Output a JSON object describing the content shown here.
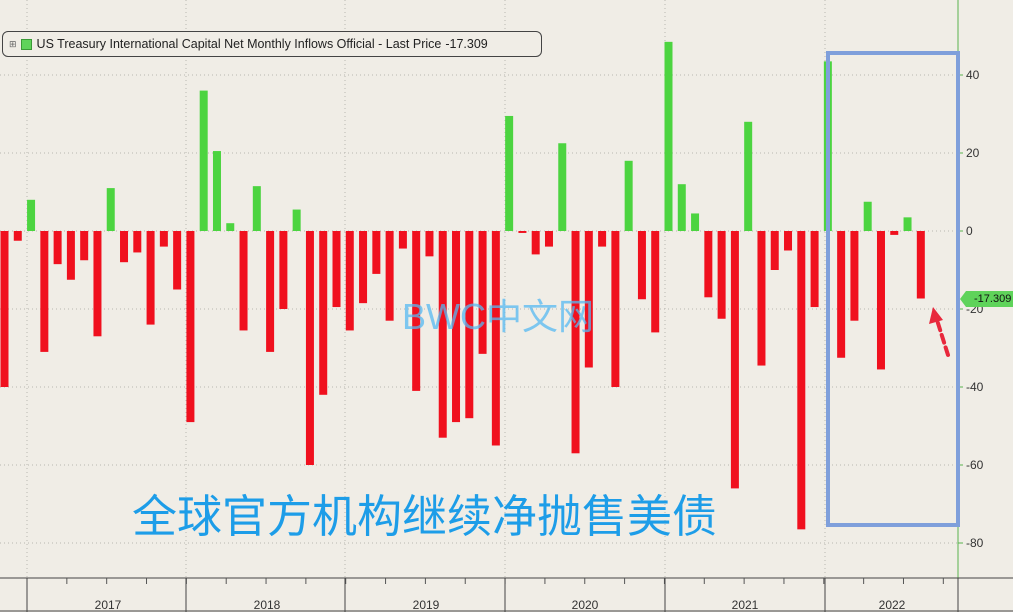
{
  "legend": {
    "label": "US Treasury International Capital Net Monthly Inflows Official - Last Price",
    "last_price": "-17.309"
  },
  "watermark": "BWC中文网",
  "headline": "全球官方机构继续净抛售美债",
  "last_badge": "-17.309",
  "colors": {
    "positive": "#4cd440",
    "negative": "#f0101e",
    "highlight_box": "#7f9fdb",
    "arrow": "#e8283c",
    "background": "#f0ede6"
  },
  "chart_data": {
    "type": "bar",
    "series": [
      {
        "name": "US Treasury International Capital Net Monthly Inflows Official",
        "values": [
          -40,
          -2.5,
          8,
          -31,
          -8.5,
          -12.5,
          -7.5,
          -27,
          11,
          -8,
          -5.5,
          -24,
          -4,
          -15,
          -49,
          36,
          20.5,
          2,
          -25.5,
          11.5,
          -31,
          -20,
          5.5,
          -60,
          -42,
          -19.5,
          -25.5,
          -18.5,
          -11,
          -23,
          -4.5,
          -41,
          -6.5,
          -53,
          -49,
          -48,
          -31.5,
          -55,
          29.5,
          -0.5,
          -6,
          -4,
          22.5,
          -57,
          -35,
          -4,
          -40,
          18,
          -17.5,
          -26,
          48.5,
          12,
          4.5,
          -17,
          -22.5,
          -66,
          28,
          -34.5,
          -10,
          -5,
          -76.5,
          -19.5,
          43.5,
          -32.5,
          -23,
          7.5,
          -35.5,
          -1,
          3.5,
          -17.309
        ]
      }
    ],
    "x_ticks": [
      "2017",
      "2018",
      "2019",
      "2020",
      "2021",
      "2022"
    ],
    "y_ticks": [
      40,
      20,
      0,
      -20,
      -40,
      -60,
      -80
    ],
    "ylim": [
      -86,
      60
    ],
    "axis_side": "right",
    "grid": true,
    "legend_position": "top-left",
    "last_value": -17.309,
    "annotations": [
      "highlight box around 2022",
      "arrow pointing to last bar"
    ]
  }
}
